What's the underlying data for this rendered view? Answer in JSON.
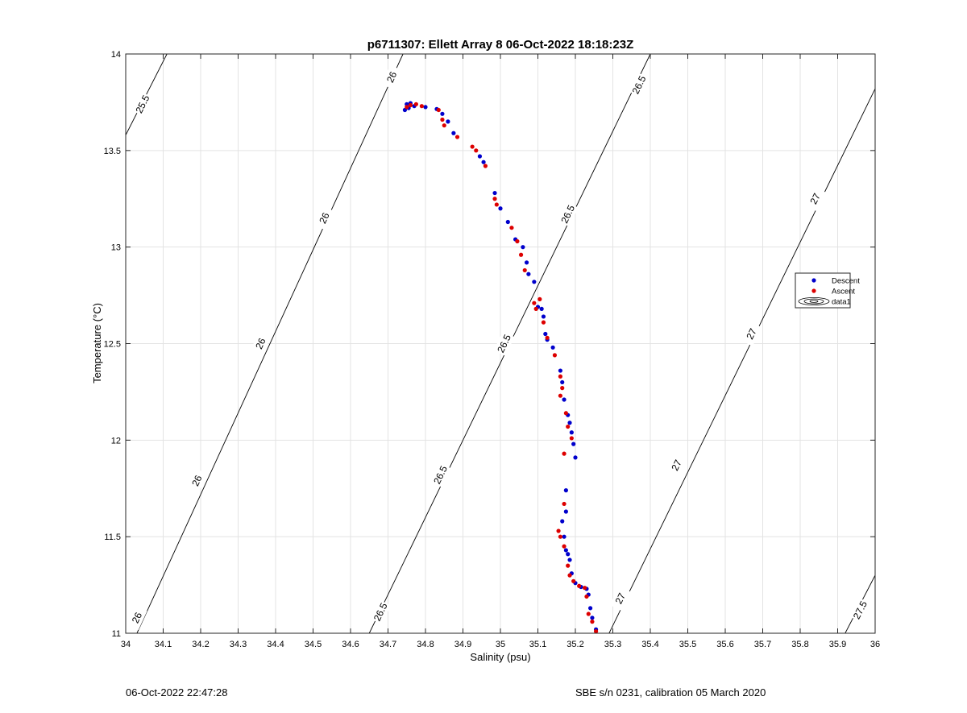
{
  "chart_data": {
    "type": "scatter",
    "title": "p6711307: Ellett Array 8 06-Oct-2022 18:18:23Z",
    "xlabel": "Salinity (psu)",
    "ylabel": "Temperature (°C)",
    "xlim": [
      34,
      36
    ],
    "ylim": [
      11,
      14
    ],
    "x_ticks": [
      "34",
      "34.1",
      "34.2",
      "34.3",
      "34.4",
      "34.5",
      "34.6",
      "34.7",
      "34.8",
      "34.9",
      "35",
      "35.1",
      "35.2",
      "35.3",
      "35.4",
      "35.5",
      "35.6",
      "35.7",
      "35.8",
      "35.9",
      "36"
    ],
    "y_ticks": [
      "11",
      "11.5",
      "12",
      "12.5",
      "13",
      "13.5",
      "14"
    ],
    "grid": true,
    "legend_position": "right",
    "legend": [
      {
        "label": "Descent",
        "marker": "dot",
        "color": "#0000cc"
      },
      {
        "label": "Ascent",
        "marker": "dot",
        "color": "#dd0000"
      },
      {
        "label": "data1",
        "marker": "contour"
      }
    ],
    "contours": [
      {
        "label": "25.5",
        "points": [
          [
            34.0,
            13.58
          ],
          [
            34.11,
            14.0
          ]
        ],
        "label_at": [
          [
            34.045,
            13.74
          ]
        ]
      },
      {
        "label": "26",
        "points": [
          [
            34.03,
            11.0
          ],
          [
            34.74,
            14.0
          ]
        ],
        "label_at": [
          [
            34.03,
            11.08
          ],
          [
            34.19,
            11.79
          ],
          [
            34.36,
            12.5
          ],
          [
            34.53,
            13.15
          ],
          [
            34.71,
            13.88
          ]
        ]
      },
      {
        "label": "26.5",
        "points": [
          [
            34.65,
            11.0
          ],
          [
            35.4,
            14.0
          ]
        ],
        "label_at": [
          [
            34.68,
            11.11
          ],
          [
            34.84,
            11.82
          ],
          [
            35.01,
            12.5
          ],
          [
            35.18,
            13.17
          ],
          [
            35.37,
            13.84
          ]
        ]
      },
      {
        "label": "27",
        "points": [
          [
            35.29,
            11.0
          ],
          [
            36.0,
            13.82
          ]
        ],
        "label_at": [
          [
            35.32,
            11.18
          ],
          [
            35.47,
            11.87
          ],
          [
            35.67,
            12.55
          ],
          [
            35.84,
            13.25
          ]
        ]
      },
      {
        "label": "27.5",
        "points": [
          [
            35.92,
            11.0
          ],
          [
            36.0,
            11.3
          ]
        ],
        "label_at": [
          [
            35.96,
            11.12
          ]
        ]
      }
    ],
    "series": [
      {
        "name": "Descent",
        "color": "#0000cc",
        "points": [
          [
            34.745,
            13.71
          ],
          [
            34.75,
            13.74
          ],
          [
            34.755,
            13.72
          ],
          [
            34.76,
            13.745
          ],
          [
            34.77,
            13.73
          ],
          [
            34.8,
            13.725
          ],
          [
            34.83,
            13.715
          ],
          [
            34.845,
            13.69
          ],
          [
            34.86,
            13.65
          ],
          [
            34.875,
            13.59
          ],
          [
            34.945,
            13.47
          ],
          [
            34.955,
            13.44
          ],
          [
            34.985,
            13.28
          ],
          [
            35.0,
            13.2
          ],
          [
            35.02,
            13.13
          ],
          [
            35.04,
            13.04
          ],
          [
            35.06,
            13.0
          ],
          [
            35.07,
            12.92
          ],
          [
            35.075,
            12.86
          ],
          [
            35.09,
            12.82
          ],
          [
            35.1,
            12.69
          ],
          [
            35.11,
            12.68
          ],
          [
            35.115,
            12.64
          ],
          [
            35.12,
            12.55
          ],
          [
            35.125,
            12.52
          ],
          [
            35.14,
            12.48
          ],
          [
            35.16,
            12.36
          ],
          [
            35.165,
            12.3
          ],
          [
            35.17,
            12.21
          ],
          [
            35.18,
            12.13
          ],
          [
            35.185,
            12.09
          ],
          [
            35.19,
            12.04
          ],
          [
            35.195,
            11.98
          ],
          [
            35.2,
            11.91
          ],
          [
            35.175,
            11.74
          ],
          [
            35.175,
            11.63
          ],
          [
            35.165,
            11.58
          ],
          [
            35.17,
            11.5
          ],
          [
            35.175,
            11.43
          ],
          [
            35.18,
            11.41
          ],
          [
            35.185,
            11.38
          ],
          [
            35.19,
            11.31
          ],
          [
            35.2,
            11.26
          ],
          [
            35.215,
            11.24
          ],
          [
            35.23,
            11.23
          ],
          [
            35.235,
            11.2
          ],
          [
            35.24,
            11.13
          ],
          [
            35.245,
            11.08
          ],
          [
            35.255,
            11.02
          ]
        ]
      },
      {
        "name": "Ascent",
        "color": "#dd0000",
        "points": [
          [
            34.75,
            13.725
          ],
          [
            34.76,
            13.735
          ],
          [
            34.775,
            13.74
          ],
          [
            34.79,
            13.73
          ],
          [
            34.835,
            13.71
          ],
          [
            34.845,
            13.66
          ],
          [
            34.85,
            13.63
          ],
          [
            34.885,
            13.57
          ],
          [
            34.925,
            13.52
          ],
          [
            34.935,
            13.5
          ],
          [
            34.96,
            13.42
          ],
          [
            34.985,
            13.25
          ],
          [
            34.99,
            13.22
          ],
          [
            35.03,
            13.1
          ],
          [
            35.045,
            13.03
          ],
          [
            35.055,
            12.96
          ],
          [
            35.065,
            12.88
          ],
          [
            35.09,
            12.71
          ],
          [
            35.095,
            12.68
          ],
          [
            35.105,
            12.73
          ],
          [
            35.115,
            12.61
          ],
          [
            35.125,
            12.53
          ],
          [
            35.145,
            12.44
          ],
          [
            35.16,
            12.33
          ],
          [
            35.165,
            12.27
          ],
          [
            35.16,
            12.23
          ],
          [
            35.175,
            12.14
          ],
          [
            35.18,
            12.07
          ],
          [
            35.19,
            12.01
          ],
          [
            35.17,
            11.93
          ],
          [
            35.17,
            11.67
          ],
          [
            35.155,
            11.53
          ],
          [
            35.16,
            11.5
          ],
          [
            35.17,
            11.45
          ],
          [
            35.18,
            11.35
          ],
          [
            35.185,
            11.3
          ],
          [
            35.195,
            11.27
          ],
          [
            35.21,
            11.245
          ],
          [
            35.225,
            11.235
          ],
          [
            35.23,
            11.19
          ],
          [
            35.235,
            11.1
          ],
          [
            35.245,
            11.06
          ],
          [
            35.255,
            11.01
          ]
        ]
      }
    ]
  },
  "footer": {
    "left": "06-Oct-2022 22:47:28",
    "right": "SBE s/n 0231, calibration 05 March 2020"
  }
}
